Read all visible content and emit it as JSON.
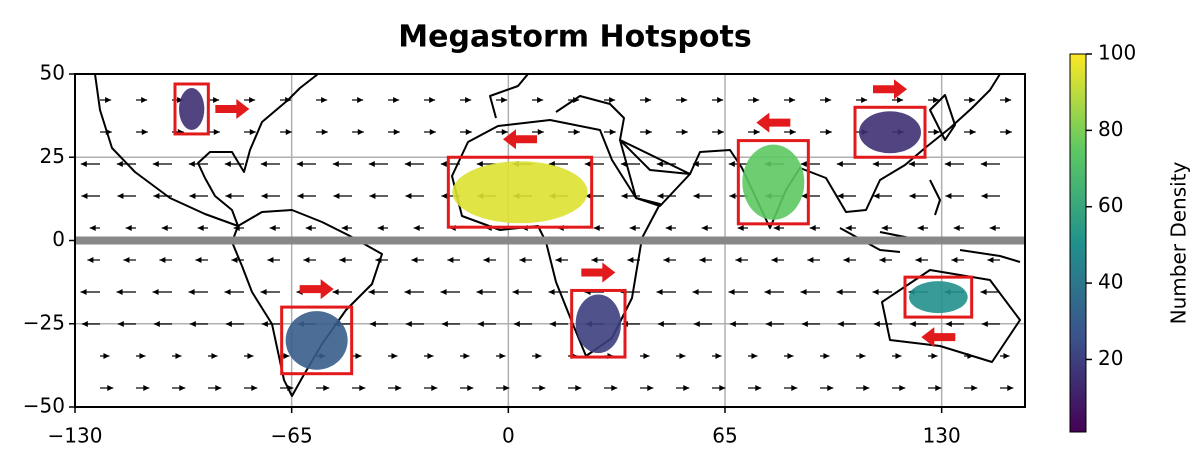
{
  "chart_data": {
    "type": "map",
    "title": "Megastorm Hotspots",
    "xlim": [
      -130,
      155
    ],
    "ylim": [
      -50,
      50
    ],
    "xticks": [
      {
        "value": -130,
        "label": "−130"
      },
      {
        "value": -65,
        "label": "−65"
      },
      0,
      65,
      130
    ],
    "yticks": [
      {
        "value": -50,
        "label": "−50"
      },
      {
        "value": -25,
        "label": "−25"
      },
      0,
      25,
      50
    ],
    "grid": true,
    "reference_line": 0,
    "colormap": "viridis",
    "box_color": "#e31a1c",
    "hotspots": [
      {
        "lon": [
          -100,
          -90
        ],
        "lat": [
          32,
          47
        ],
        "density": 15,
        "arrow": "right",
        "arrow_side": "right"
      },
      {
        "lon": [
          -18,
          25
        ],
        "lat": [
          4,
          25
        ],
        "density": 95,
        "arrow": "left",
        "arrow_side": "top"
      },
      {
        "lon": [
          69,
          90
        ],
        "lat": [
          5,
          30
        ],
        "density": 75,
        "arrow": "left",
        "arrow_side": "top"
      },
      {
        "lon": [
          104,
          125
        ],
        "lat": [
          25,
          40
        ],
        "density": 15,
        "arrow": "right",
        "arrow_side": "top"
      },
      {
        "lon": [
          -68,
          -47
        ],
        "lat": [
          -40,
          -20
        ],
        "density": 30,
        "arrow": "right",
        "arrow_side": "top"
      },
      {
        "lon": [
          19,
          35
        ],
        "lat": [
          -35,
          -15
        ],
        "density": 20,
        "arrow": "right",
        "arrow_side": "top"
      },
      {
        "lon": [
          119,
          139
        ],
        "lat": [
          -23,
          -11
        ],
        "density": 50,
        "arrow": "left",
        "arrow_side": "bottom"
      }
    ],
    "colorbar": {
      "label": "Number Density",
      "lim": [
        1,
        100
      ],
      "ticks": [
        20,
        40,
        60,
        80,
        100
      ]
    }
  }
}
